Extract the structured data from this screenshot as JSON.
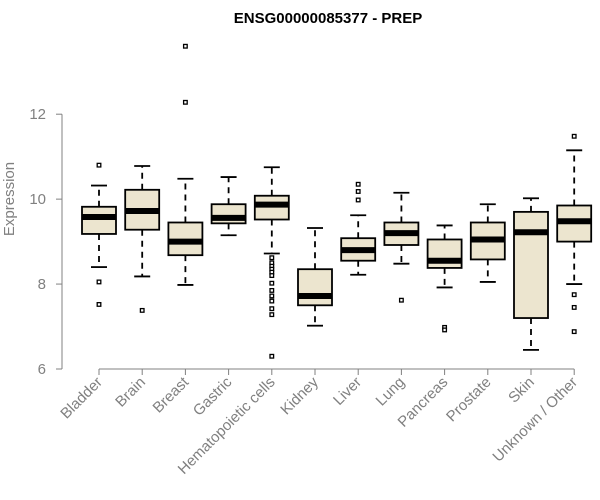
{
  "chart_data": {
    "type": "boxplot",
    "title": "ENSG00000085377 - PREP",
    "xlabel": "",
    "ylabel": "Expression",
    "ylim": [
      6,
      13.7
    ],
    "yticks": [
      6,
      8,
      10,
      12
    ],
    "categories": [
      "Bladder",
      "Brain",
      "Breast",
      "Gastric",
      "Hematopoietic cells",
      "Kidney",
      "Liver",
      "Lung",
      "Pancreas",
      "Prostate",
      "Skin",
      "Unknown / Other"
    ],
    "boxes": [
      {
        "name": "Bladder",
        "whisker_low": 8.4,
        "q1": 9.18,
        "median": 9.58,
        "q3": 9.82,
        "whisker_high": 10.32,
        "outliers": [
          10.8,
          8.05,
          7.52
        ]
      },
      {
        "name": "Brain",
        "whisker_low": 8.18,
        "q1": 9.28,
        "median": 9.72,
        "q3": 10.22,
        "whisker_high": 10.78,
        "outliers": [
          7.38
        ]
      },
      {
        "name": "Breast",
        "whisker_low": 7.98,
        "q1": 8.68,
        "median": 9.0,
        "q3": 9.45,
        "whisker_high": 10.48,
        "outliers": [
          13.6,
          12.28
        ]
      },
      {
        "name": "Gastric",
        "whisker_low": 9.15,
        "q1": 9.43,
        "median": 9.56,
        "q3": 9.88,
        "whisker_high": 10.52,
        "outliers": []
      },
      {
        "name": "Hematopoietic cells",
        "whisker_low": 8.72,
        "q1": 9.52,
        "median": 9.87,
        "q3": 10.08,
        "whisker_high": 10.75,
        "outliers": [
          8.62,
          8.5,
          8.42,
          8.35,
          8.28,
          8.2,
          8.02,
          7.85,
          7.72,
          7.6,
          7.42,
          7.28,
          6.3
        ]
      },
      {
        "name": "Kidney",
        "whisker_low": 7.02,
        "q1": 7.5,
        "median": 7.72,
        "q3": 8.35,
        "whisker_high": 9.32,
        "outliers": []
      },
      {
        "name": "Liver",
        "whisker_low": 8.22,
        "q1": 8.55,
        "median": 8.8,
        "q3": 9.08,
        "whisker_high": 9.62,
        "outliers": [
          10.35,
          10.18,
          9.98
        ]
      },
      {
        "name": "Lung",
        "whisker_low": 8.48,
        "q1": 8.92,
        "median": 9.2,
        "q3": 9.45,
        "whisker_high": 10.15,
        "outliers": [
          7.62
        ]
      },
      {
        "name": "Pancreas",
        "whisker_low": 7.92,
        "q1": 8.38,
        "median": 8.55,
        "q3": 9.05,
        "whisker_high": 9.38,
        "outliers": [
          6.98,
          6.92
        ]
      },
      {
        "name": "Prostate",
        "whisker_low": 8.05,
        "q1": 8.58,
        "median": 9.05,
        "q3": 9.45,
        "whisker_high": 9.88,
        "outliers": []
      },
      {
        "name": "Skin",
        "whisker_low": 6.45,
        "q1": 7.2,
        "median": 9.22,
        "q3": 9.7,
        "whisker_high": 10.02,
        "outliers": []
      },
      {
        "name": "Unknown / Other",
        "whisker_low": 8.0,
        "q1": 9.0,
        "median": 9.48,
        "q3": 9.85,
        "whisker_high": 11.15,
        "outliers": [
          11.48,
          7.75,
          7.45,
          6.88
        ]
      }
    ]
  }
}
